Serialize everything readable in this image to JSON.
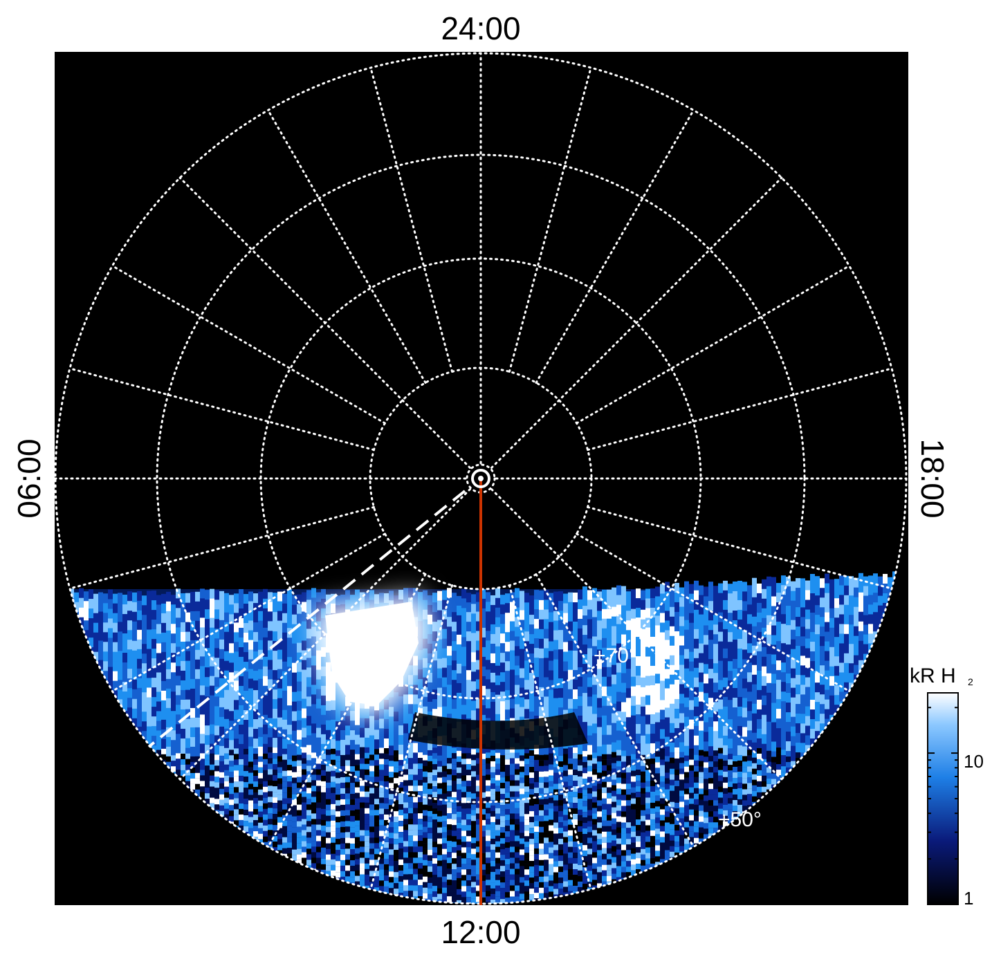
{
  "lt_labels": {
    "top": "24:00",
    "bottom": "12:00",
    "left": "06:00",
    "right": "18:00"
  },
  "lat_labels": {
    "inner": "+70°",
    "outer": "+50°"
  },
  "colorbar": {
    "unit": "kR H",
    "unit_sub": "2",
    "tick_10": "10",
    "tick_1": "1",
    "min": 1,
    "max": 25
  },
  "colors": {
    "background": "#000000",
    "grid": "#ffffff",
    "meridian": "#cc3300",
    "dark_blue": "#000a40",
    "mid_blue": "#1e7fe6",
    "light_blue": "#7fc4ff",
    "peak": "#ffffff"
  }
}
